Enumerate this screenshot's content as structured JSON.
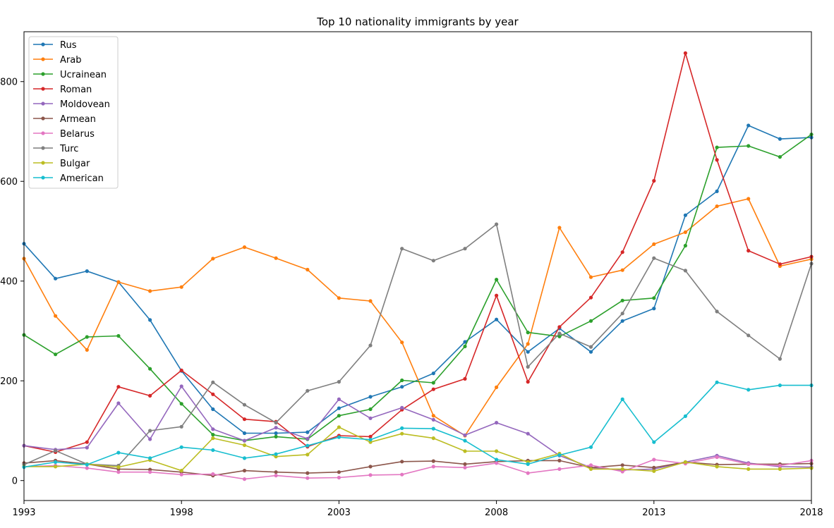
{
  "chart_data": {
    "type": "line",
    "title": "Top 10 nationality immigrants by year",
    "xlabel": "",
    "ylabel": "",
    "xlim": [
      1993,
      2018
    ],
    "ylim": [
      -40,
      900
    ],
    "x_ticks": [
      1993,
      1998,
      2003,
      2008,
      2013,
      2018
    ],
    "y_ticks": [
      0,
      200,
      400,
      600,
      800
    ],
    "y_tick_labels": [
      "0",
      "200",
      "400",
      "600",
      "800"
    ],
    "legend_position": "upper-left",
    "grid": false,
    "x": [
      1993,
      1994,
      1995,
      1996,
      1997,
      1998,
      1999,
      2000,
      2001,
      2002,
      2003,
      2004,
      2005,
      2006,
      2007,
      2008,
      2009,
      2010,
      2011,
      2012,
      2013,
      2014,
      2015,
      2016,
      2017,
      2018
    ],
    "series": [
      {
        "name": "Rus",
        "color": "#1f77b4",
        "values": [
          475,
          405,
          420,
          398,
          322,
          220,
          143,
          95,
          95,
          97,
          145,
          168,
          188,
          215,
          278,
          323,
          258,
          305,
          258,
          320,
          345,
          532,
          580,
          712,
          685,
          688
        ]
      },
      {
        "name": "Arab",
        "color": "#ff7f0e",
        "values": [
          445,
          330,
          262,
          398,
          380,
          388,
          445,
          468,
          446,
          423,
          366,
          360,
          277,
          130,
          90,
          187,
          274,
          507,
          408,
          422,
          474,
          498,
          550,
          565,
          430,
          444
        ]
      },
      {
        "name": "Ucrainean",
        "color": "#2ca02c",
        "values": [
          292,
          253,
          288,
          290,
          224,
          154,
          92,
          80,
          88,
          83,
          130,
          143,
          201,
          196,
          269,
          403,
          297,
          289,
          320,
          361,
          366,
          471,
          668,
          671,
          649,
          694
        ]
      },
      {
        "name": "Roman",
        "color": "#d62728",
        "values": [
          70,
          57,
          77,
          188,
          170,
          221,
          173,
          123,
          118,
          68,
          90,
          88,
          142,
          183,
          204,
          371,
          198,
          308,
          367,
          458,
          601,
          857,
          643,
          461,
          434,
          449
        ]
      },
      {
        "name": "Moldovean",
        "color": "#9467bd",
        "values": [
          70,
          62,
          66,
          155,
          83,
          189,
          103,
          80,
          106,
          84,
          163,
          125,
          146,
          122,
          91,
          116,
          94,
          50,
          26,
          21,
          23,
          37,
          50,
          35,
          28,
          27
        ]
      },
      {
        "name": "Armean",
        "color": "#8c564b",
        "values": [
          35,
          40,
          33,
          23,
          22,
          17,
          10,
          20,
          17,
          15,
          17,
          28,
          38,
          39,
          33,
          38,
          40,
          40,
          26,
          31,
          26,
          37,
          32,
          33,
          33,
          34
        ]
      },
      {
        "name": "Belarus",
        "color": "#e377c2",
        "values": [
          28,
          30,
          25,
          17,
          17,
          12,
          13,
          3,
          10,
          5,
          6,
          11,
          12,
          28,
          26,
          35,
          15,
          23,
          31,
          18,
          42,
          34,
          47,
          33,
          30,
          40
        ]
      },
      {
        "name": "Turc",
        "color": "#7f7f7f",
        "values": [
          32,
          60,
          33,
          30,
          100,
          108,
          197,
          152,
          116,
          180,
          198,
          271,
          465,
          441,
          465,
          514,
          228,
          295,
          268,
          335,
          446,
          421,
          339,
          291,
          244,
          435
        ]
      },
      {
        "name": "Bulgar",
        "color": "#bcbd22",
        "values": [
          28,
          28,
          33,
          27,
          41,
          20,
          85,
          71,
          48,
          52,
          107,
          77,
          94,
          85,
          59,
          59,
          37,
          54,
          23,
          23,
          19,
          37,
          28,
          23,
          23,
          25
        ]
      },
      {
        "name": "American",
        "color": "#17becf",
        "values": [
          27,
          37,
          32,
          56,
          45,
          67,
          61,
          45,
          53,
          70,
          87,
          82,
          105,
          104,
          80,
          42,
          33,
          51,
          67,
          163,
          77,
          129,
          197,
          182,
          191,
          191
        ]
      }
    ]
  }
}
